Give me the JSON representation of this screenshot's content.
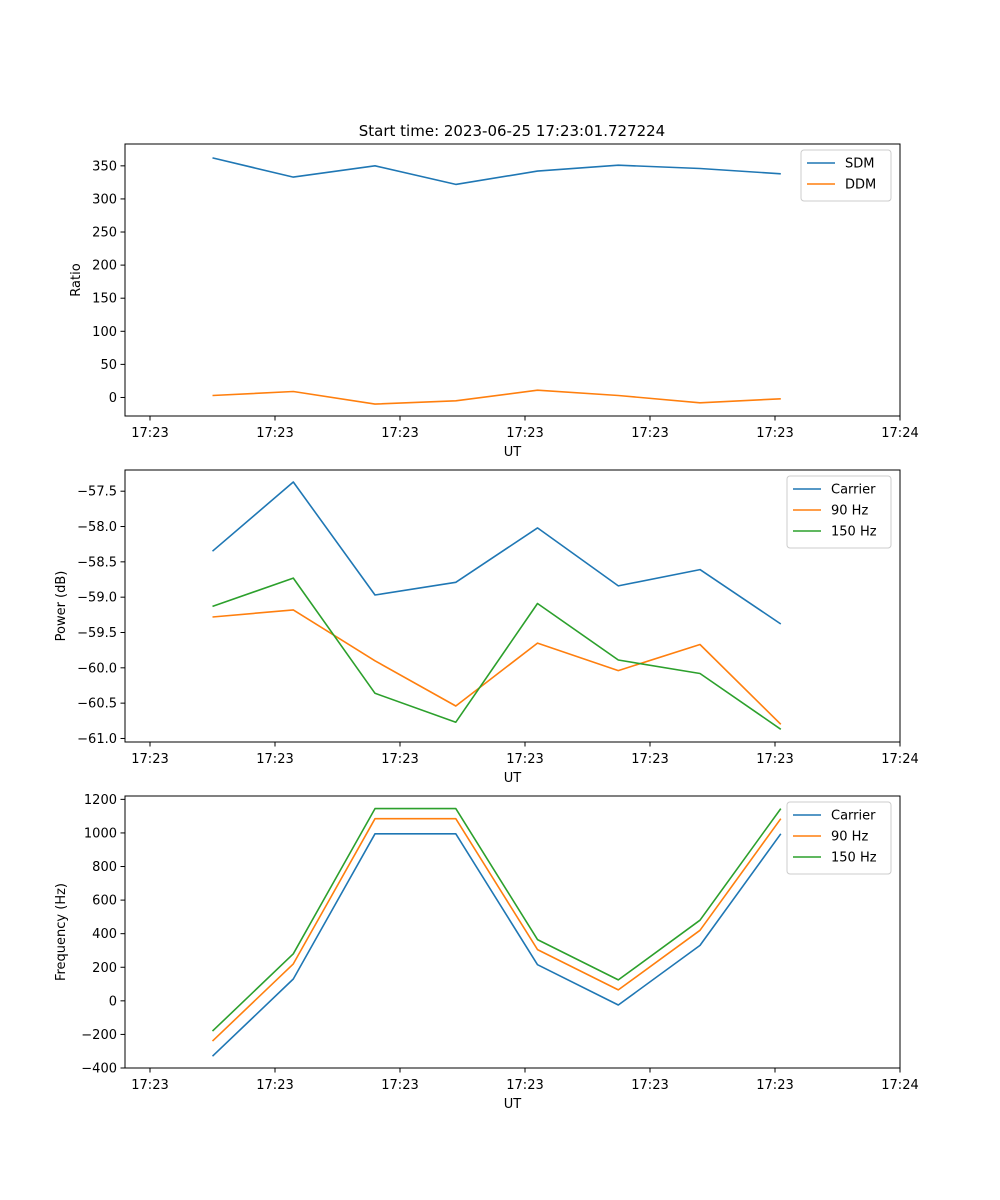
{
  "figure": {
    "title": "Start time: 2023-06-25 17:23:01.727224"
  },
  "colors": {
    "blue": "#1f77b4",
    "orange": "#ff7f0e",
    "green": "#2ca02c"
  },
  "chart_data": [
    {
      "type": "line",
      "title": "Start time: 2023-06-25 17:23:01.727224",
      "xlabel": "UT",
      "ylabel": "Ratio",
      "x_tick_labels": [
        "17:23",
        "17:23",
        "17:23",
        "17:23",
        "17:23",
        "17:23",
        "17:24"
      ],
      "x_tick_values": [
        -0.5,
        1,
        2.5,
        4,
        5.5,
        7,
        8.5
      ],
      "xlim": [
        -0.8,
        8.5
      ],
      "x": [
        0.25,
        1.22,
        2.2,
        3.17,
        4.15,
        5.12,
        6.1,
        7.07
      ],
      "ylim": [
        -28,
        383
      ],
      "y_ticks": [
        0,
        50,
        100,
        150,
        200,
        250,
        300,
        350
      ],
      "grid": false,
      "legend": "upper right",
      "series": [
        {
          "name": "SDM",
          "color": "#1f77b4",
          "values": [
            362,
            333,
            350,
            322,
            342,
            351,
            346,
            338
          ]
        },
        {
          "name": "DDM",
          "color": "#ff7f0e",
          "values": [
            3,
            9,
            -10,
            -5,
            11,
            3,
            -8,
            -2
          ]
        }
      ]
    },
    {
      "type": "line",
      "xlabel": "UT",
      "ylabel": "Power (dB)",
      "x_tick_labels": [
        "17:23",
        "17:23",
        "17:23",
        "17:23",
        "17:23",
        "17:23",
        "17:24"
      ],
      "x_tick_values": [
        -0.5,
        1,
        2.5,
        4,
        5.5,
        7,
        8.5
      ],
      "xlim": [
        -0.8,
        8.5
      ],
      "x": [
        0.25,
        1.22,
        2.2,
        3.17,
        4.15,
        5.12,
        6.1,
        7.07
      ],
      "ylim": [
        -61.05,
        -57.2
      ],
      "y_ticks": [
        -61.0,
        -60.5,
        -60.0,
        -59.5,
        -59.0,
        -58.5,
        -58.0,
        -57.5
      ],
      "y_tick_labels": [
        "−61.0",
        "−60.5",
        "−60.0",
        "−59.5",
        "−59.0",
        "−58.5",
        "−58.0",
        "−57.5"
      ],
      "grid": false,
      "legend": "upper right",
      "series": [
        {
          "name": "Carrier",
          "color": "#1f77b4",
          "values": [
            -58.35,
            -57.37,
            -58.97,
            -58.79,
            -58.02,
            -58.84,
            -58.61,
            -59.38
          ]
        },
        {
          "name": "90 Hz",
          "color": "#ff7f0e",
          "values": [
            -59.28,
            -59.18,
            -59.9,
            -60.54,
            -59.65,
            -60.04,
            -59.67,
            -60.8
          ]
        },
        {
          "name": "150 Hz",
          "color": "#2ca02c",
          "values": [
            -59.13,
            -58.73,
            -60.36,
            -60.77,
            -59.09,
            -59.89,
            -60.08,
            -60.87
          ]
        }
      ]
    },
    {
      "type": "line",
      "xlabel": "UT",
      "ylabel": "Frequency (Hz)",
      "x_tick_labels": [
        "17:23",
        "17:23",
        "17:23",
        "17:23",
        "17:23",
        "17:23",
        "17:24"
      ],
      "x_tick_values": [
        -0.5,
        1,
        2.5,
        4,
        5.5,
        7,
        8.5
      ],
      "xlim": [
        -0.8,
        8.5
      ],
      "x": [
        0.25,
        1.22,
        2.2,
        3.17,
        4.15,
        5.12,
        6.1,
        7.07
      ],
      "ylim": [
        -400,
        1220
      ],
      "y_ticks": [
        -400,
        -200,
        0,
        200,
        400,
        600,
        800,
        1000,
        1200
      ],
      "y_tick_labels": [
        "−400",
        "−200",
        "0",
        "200",
        "400",
        "600",
        "800",
        "1000",
        "1200"
      ],
      "grid": false,
      "legend": "upper right",
      "series": [
        {
          "name": "Carrier",
          "color": "#1f77b4",
          "values": [
            -330,
            130,
            995,
            995,
            215,
            -25,
            330,
            995
          ]
        },
        {
          "name": "90 Hz",
          "color": "#ff7f0e",
          "values": [
            -240,
            220,
            1085,
            1085,
            305,
            65,
            420,
            1085
          ]
        },
        {
          "name": "150 Hz",
          "color": "#2ca02c",
          "values": [
            -180,
            280,
            1145,
            1145,
            365,
            125,
            480,
            1145
          ]
        }
      ]
    }
  ]
}
